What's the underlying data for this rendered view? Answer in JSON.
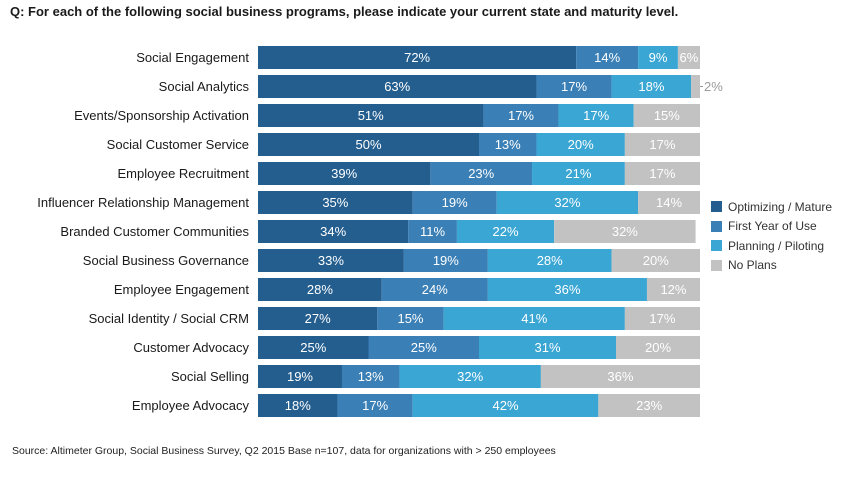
{
  "question": "Q: For each of the following social business programs, please indicate your current state and maturity level.",
  "source": "Source: Altimeter Group, Social Business Survey, Q2 2015 Base n=107, data for organizations with > 250 employees",
  "colors": {
    "optimizing": "#245e8f",
    "first_year": "#3a7fb6",
    "planning": "#3aa6d4",
    "no_plans": "#c2c2c3"
  },
  "legend": [
    {
      "label": "Optimizing / Mature",
      "color": "#245e8f"
    },
    {
      "label": "First Year of Use",
      "color": "#3a7fb6"
    },
    {
      "label": "Planning / Piloting",
      "color": "#3aa6d4"
    },
    {
      "label": "No Plans",
      "color": "#c2c2c3"
    }
  ],
  "chart_data": {
    "type": "bar",
    "orientation": "horizontal",
    "stacked": true,
    "title": "",
    "xlabel": "",
    "ylabel": "",
    "xlim": [
      0,
      100
    ],
    "legend_position": "right",
    "categories": [
      "Social Engagement",
      "Social Analytics",
      "Events/Sponsorship Activation",
      "Social Customer Service",
      "Employee Recruitment",
      "Influencer Relationship Management",
      "Branded Customer Communities",
      "Social Business Governance",
      "Employee Engagement",
      "Social Identity / Social CRM",
      "Customer Advocacy",
      "Social Selling",
      "Employee Advocacy"
    ],
    "series": [
      {
        "name": "Optimizing / Mature",
        "values": [
          72,
          63,
          51,
          50,
          39,
          35,
          34,
          33,
          28,
          27,
          25,
          19,
          18
        ]
      },
      {
        "name": "First Year of Use",
        "values": [
          14,
          17,
          17,
          13,
          23,
          19,
          11,
          19,
          24,
          15,
          25,
          13,
          17
        ]
      },
      {
        "name": "Planning / Piloting",
        "values": [
          9,
          18,
          17,
          20,
          21,
          32,
          22,
          28,
          36,
          41,
          31,
          32,
          42
        ]
      },
      {
        "name": "No Plans",
        "values": [
          6,
          2,
          15,
          17,
          17,
          14,
          32,
          20,
          12,
          17,
          20,
          36,
          23
        ]
      }
    ],
    "data_labels": [
      [
        "72%",
        "63%",
        "51%",
        "50%",
        "39%",
        "35%",
        "34%",
        "33%",
        "28%",
        "27%",
        "25%",
        "19%",
        "18%"
      ],
      [
        "14%",
        "17%",
        "17%",
        "13%",
        "23%",
        "19%",
        "11%",
        "19%",
        "24%",
        "15%",
        "25%",
        "13%",
        "17%"
      ],
      [
        "9%",
        "18%",
        "17%",
        "20%",
        "21%",
        "32%",
        "22%",
        "28%",
        "36%",
        "41%",
        "31%",
        "32%",
        "42%"
      ],
      [
        "6%",
        "2%",
        "15%",
        "17%",
        "17%",
        "14%",
        "32%",
        "20%",
        "12%",
        "17%",
        "20%",
        "36%",
        "23%"
      ]
    ]
  }
}
